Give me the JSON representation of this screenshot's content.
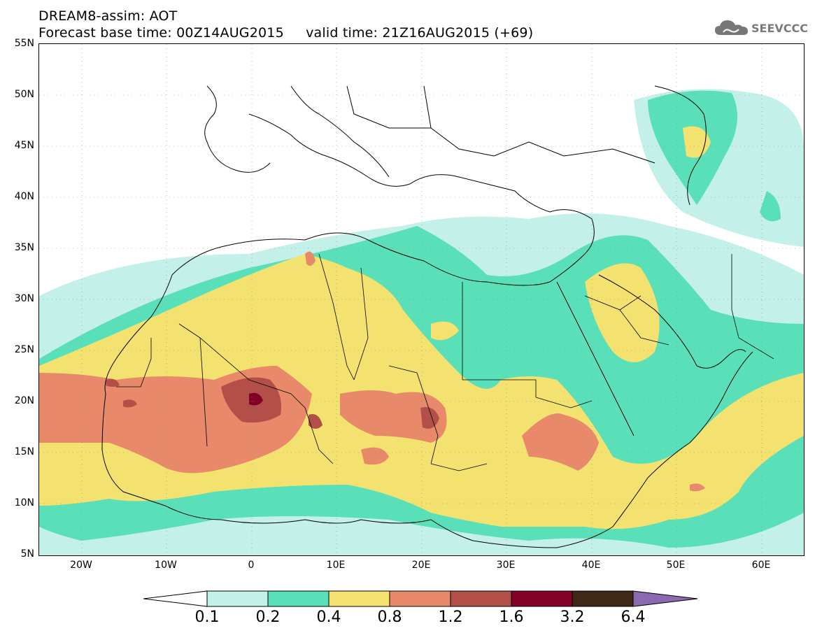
{
  "header": {
    "line1": "DREAM8-assim: AOT",
    "line2": "Forecast base time: 00Z14AUG2015     valid time: 21Z16AUG2015 (+69)",
    "logo_text": "SEEVCCC"
  },
  "map": {
    "projection": "cylindrical",
    "lon_range": [
      -25,
      65
    ],
    "lat_range": [
      5,
      55
    ],
    "lat_labels": [
      "55N",
      "50N",
      "45N",
      "40N",
      "35N",
      "30N",
      "25N",
      "20N",
      "15N",
      "10N",
      "5N"
    ],
    "lat_values": [
      55,
      50,
      45,
      40,
      35,
      30,
      25,
      20,
      15,
      10,
      5
    ],
    "lon_labels": [
      "20W",
      "10W",
      "0",
      "10E",
      "20E",
      "30E",
      "40E",
      "50E",
      "60E"
    ],
    "lon_values": [
      -20,
      -10,
      0,
      10,
      20,
      30,
      40,
      50,
      60
    ],
    "variable": "Aerosol optical thickness (AOT)"
  },
  "colorbar": {
    "labels": [
      "0.1",
      "0.2",
      "0.4",
      "0.8",
      "1.2",
      "1.6",
      "3.2",
      "6.4"
    ],
    "colors": {
      "c01": "#c3f0e8",
      "c02": "#5ae0b8",
      "c04": "#f3e170",
      "c08": "#e8896a",
      "c12": "#b24f48",
      "c16": "#830026",
      "c32": "#3f2816",
      "c64": "#8c6ab2"
    }
  }
}
